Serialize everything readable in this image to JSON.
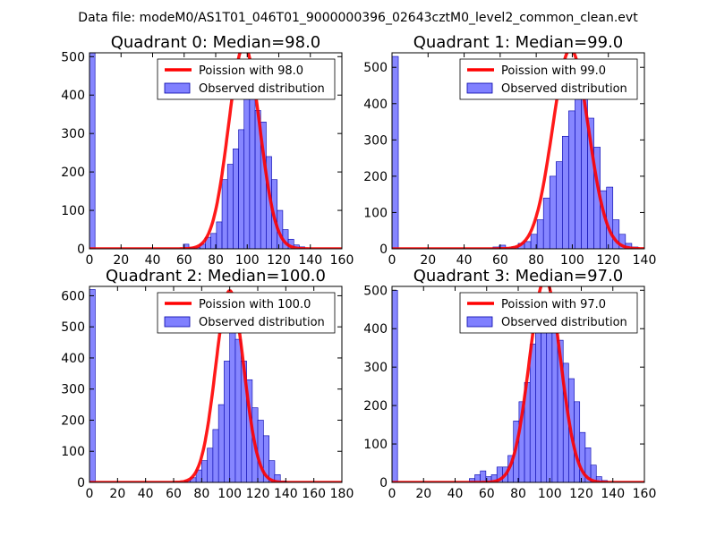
{
  "suptitle": "Data file: modeM0/AS1T01_046T01_9000000396_02643cztM0_level2_common_clean.evt",
  "colors": {
    "bar_fill": "#8080ff",
    "bar_edge": "#0000aa",
    "curve": "#ff0000"
  },
  "chart_data": [
    {
      "type": "bar",
      "title": "Quadrant 0: Median=98.0",
      "median": 98.0,
      "xlim": [
        0,
        160
      ],
      "ylim": [
        0,
        510
      ],
      "xticks": [
        0,
        20,
        40,
        60,
        80,
        100,
        120,
        140,
        160
      ],
      "yticks": [
        0,
        100,
        200,
        300,
        400,
        500
      ],
      "bin_width": 3.5,
      "bins": [
        [
          0,
          510
        ],
        [
          59.5,
          12
        ],
        [
          63,
          4
        ],
        [
          66.5,
          3
        ],
        [
          70,
          12
        ],
        [
          73.5,
          30
        ],
        [
          77,
          40
        ],
        [
          80.5,
          70
        ],
        [
          84,
          180
        ],
        [
          87.5,
          220
        ],
        [
          91,
          260
        ],
        [
          94.5,
          310
        ],
        [
          98,
          390
        ],
        [
          101.5,
          480
        ],
        [
          105,
          360
        ],
        [
          108.5,
          330
        ],
        [
          112,
          240
        ],
        [
          115.5,
          180
        ],
        [
          119,
          100
        ],
        [
          122.5,
          50
        ],
        [
          126,
          25
        ],
        [
          129.5,
          10
        ],
        [
          133,
          5
        ]
      ],
      "legend": {
        "curve": "Poission with 98.0",
        "bars": "Observed distribution"
      }
    },
    {
      "type": "bar",
      "title": "Quadrant 1: Median=99.0",
      "median": 99.0,
      "xlim": [
        0,
        140
      ],
      "ylim": [
        0,
        540
      ],
      "xticks": [
        0,
        20,
        40,
        60,
        80,
        100,
        120,
        140
      ],
      "yticks": [
        0,
        100,
        200,
        300,
        400,
        500
      ],
      "bin_width": 3.5,
      "bins": [
        [
          0,
          530
        ],
        [
          56,
          5
        ],
        [
          59.5,
          10
        ],
        [
          63,
          3
        ],
        [
          66.5,
          5
        ],
        [
          70,
          15
        ],
        [
          73.5,
          20
        ],
        [
          77,
          40
        ],
        [
          80.5,
          80
        ],
        [
          84,
          140
        ],
        [
          87.5,
          200
        ],
        [
          91,
          240
        ],
        [
          94.5,
          310
        ],
        [
          98,
          380
        ],
        [
          101.5,
          460
        ],
        [
          105,
          500
        ],
        [
          108.5,
          360
        ],
        [
          112,
          280
        ],
        [
          115.5,
          160
        ],
        [
          119,
          170
        ],
        [
          122.5,
          80
        ],
        [
          126,
          40
        ],
        [
          129.5,
          15
        ],
        [
          133,
          5
        ]
      ],
      "legend": {
        "curve": "Poission with 99.0",
        "bars": "Observed distribution"
      }
    },
    {
      "type": "bar",
      "title": "Quadrant 2: Median=100.0",
      "median": 100.0,
      "xlim": [
        0,
        180
      ],
      "ylim": [
        0,
        630
      ],
      "xticks": [
        0,
        20,
        40,
        60,
        80,
        100,
        120,
        140,
        160,
        180
      ],
      "yticks": [
        0,
        100,
        200,
        300,
        400,
        500,
        600
      ],
      "bin_width": 4.1,
      "bins": [
        [
          0,
          620
        ],
        [
          68,
          5
        ],
        [
          72,
          15
        ],
        [
          76,
          40
        ],
        [
          80,
          70
        ],
        [
          84,
          110
        ],
        [
          88,
          170
        ],
        [
          92,
          250
        ],
        [
          96,
          390
        ],
        [
          100,
          560
        ],
        [
          104,
          460
        ],
        [
          108,
          390
        ],
        [
          112,
          330
        ],
        [
          116,
          240
        ],
        [
          120,
          200
        ],
        [
          124,
          150
        ],
        [
          128,
          70
        ],
        [
          132,
          25
        ],
        [
          136,
          5
        ]
      ],
      "legend": {
        "curve": "Poission with 100.0",
        "bars": "Observed distribution"
      }
    },
    {
      "type": "bar",
      "title": "Quadrant 3: Median=97.0",
      "median": 97.0,
      "xlim": [
        0,
        160
      ],
      "ylim": [
        0,
        510
      ],
      "xticks": [
        0,
        20,
        40,
        60,
        80,
        100,
        120,
        140,
        160
      ],
      "yticks": [
        0,
        100,
        200,
        300,
        400,
        500
      ],
      "bin_width": 3.5,
      "bins": [
        [
          0,
          500
        ],
        [
          49,
          10
        ],
        [
          52.5,
          20
        ],
        [
          56,
          30
        ],
        [
          59.5,
          15
        ],
        [
          63,
          20
        ],
        [
          66.5,
          40
        ],
        [
          70,
          40
        ],
        [
          73.5,
          70
        ],
        [
          77,
          160
        ],
        [
          80.5,
          210
        ],
        [
          84,
          260
        ],
        [
          87.5,
          360
        ],
        [
          91,
          400
        ],
        [
          94.5,
          460
        ],
        [
          98,
          480
        ],
        [
          101.5,
          420
        ],
        [
          105,
          370
        ],
        [
          108.5,
          310
        ],
        [
          112,
          270
        ],
        [
          115.5,
          210
        ],
        [
          119,
          130
        ],
        [
          122.5,
          90
        ],
        [
          126,
          45
        ],
        [
          129.5,
          15
        ],
        [
          133,
          5
        ]
      ],
      "legend": {
        "curve": "Poission with 97.0",
        "bars": "Observed distribution"
      }
    }
  ]
}
